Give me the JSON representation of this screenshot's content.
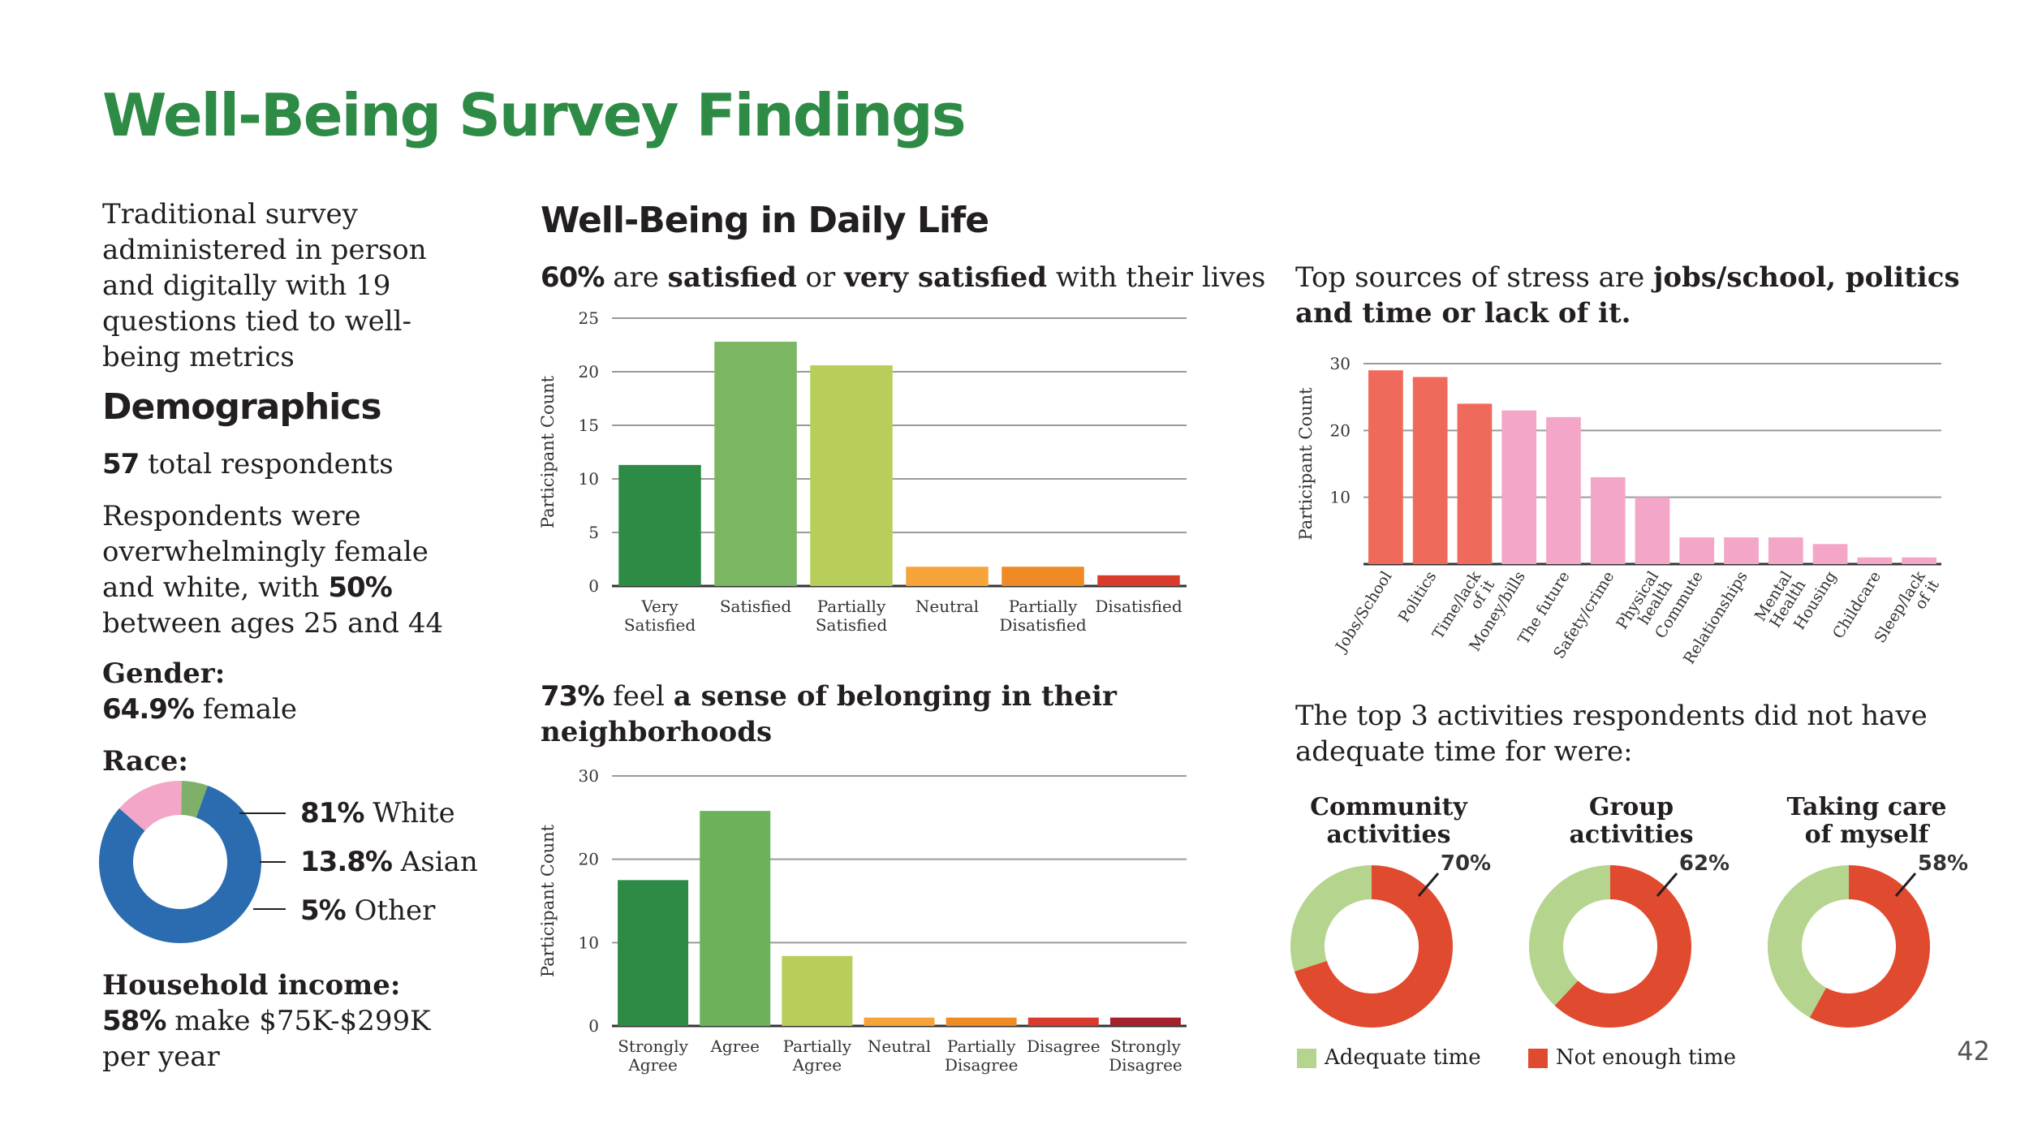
{
  "title": "Well-Being Survey Findings",
  "intro": "Traditional survey administered in person and digitally with 19 questions tied to well-being metrics",
  "demographics": {
    "heading": "Demographics",
    "total_num": "57",
    "total_text": "total respondents",
    "respondents_text": "Respondents were overwhelmingly female and white, with",
    "respondents_pct": "50%",
    "respondents_text2": "between ages 25 and 44",
    "gender_label": "Gender:",
    "gender_pct": "64.9%",
    "gender_text": "female",
    "race_label": "Race:",
    "race": [
      {
        "pct": "81%",
        "label": "White",
        "value": 81,
        "color": "#2b6cb0"
      },
      {
        "pct": "13.8%",
        "label": "Asian",
        "value": 13.8,
        "color": "#f4a6c8"
      },
      {
        "pct": "5%",
        "label": "Other",
        "value": 5.2,
        "color": "#7fb069"
      }
    ],
    "income_label": "Household income:",
    "income_pct": "58%",
    "income_text": "make $75K-$299K per year"
  },
  "daily_life_heading": "Well-Being in Daily Life",
  "satisfaction_title": {
    "pct": "60%",
    "t1": "are",
    "b1": "satisfied",
    "t2": "or",
    "b2": "very satisfied",
    "t3": "with their lives"
  },
  "belonging_title": {
    "pct": "73%",
    "t1": "feel",
    "b1": "a sense of belonging in their neighborhoods"
  },
  "stress_title": {
    "t1": "Top sources of stress are",
    "b1": "jobs/school, politics and time or lack of it."
  },
  "activities_title": "The top 3 activities respondents did not have adequate time for were:",
  "page_number": "42",
  "chart_data": [
    {
      "id": "satisfaction",
      "type": "bar",
      "ylabel": "Participant Count",
      "ylim": [
        0,
        25
      ],
      "yticks": [
        0,
        5,
        10,
        15,
        20,
        25
      ],
      "categories": [
        "Very Satisfied",
        "Satisfied",
        "Partially Satisfied",
        "Neutral",
        "Partially Disatisfied",
        "Disatisfied"
      ],
      "values": [
        11.3,
        22.8,
        20.6,
        1.8,
        1.8,
        1.0
      ],
      "colors": [
        "#2e8b46",
        "#7bb662",
        "#b7cf5a",
        "#f6a33a",
        "#f08a24",
        "#d93a2b"
      ]
    },
    {
      "id": "belonging",
      "type": "bar",
      "ylabel": "Participant Count",
      "ylim": [
        0,
        30
      ],
      "yticks": [
        0,
        10,
        20,
        30
      ],
      "categories": [
        "Strongly Agree",
        "Agree",
        "Partially Agree",
        "Neutral",
        "Partially Disagree",
        "Disagree",
        "Strongly Disagree"
      ],
      "values": [
        17.5,
        25.8,
        8.4,
        1.0,
        1.0,
        1.0,
        1.0
      ],
      "colors": [
        "#2e8b46",
        "#6cb25a",
        "#b7cf5a",
        "#f6a33a",
        "#f08a24",
        "#d93a2b",
        "#a3202d"
      ]
    },
    {
      "id": "stress",
      "type": "bar",
      "ylabel": "Participant Count",
      "ylim": [
        0,
        30
      ],
      "yticks": [
        10,
        20,
        30
      ],
      "categories": [
        "Jobs/School",
        "Politics",
        "Time/lack of it",
        "Money/bills",
        "The future",
        "Safety/crime",
        "Physical health",
        "Commute",
        "Relationships",
        "Mental Health",
        "Housing",
        "Childcare",
        "Sleep/lack of it"
      ],
      "values": [
        29,
        28,
        24,
        23,
        22,
        13,
        10,
        4,
        4,
        4,
        3,
        1,
        1
      ],
      "colors": [
        "#ef6a5a",
        "#ef6a5a",
        "#ef6a5a",
        "#f4a6c8",
        "#f4a6c8",
        "#f4a6c8",
        "#f4a6c8",
        "#f4a6c8",
        "#f4a6c8",
        "#f4a6c8",
        "#f4a6c8",
        "#f4a6c8",
        "#f4a6c8"
      ]
    },
    {
      "id": "activities",
      "type": "pie",
      "series": [
        {
          "name": "Community activities",
          "label": "70%",
          "not_enough": 70
        },
        {
          "name": "Group activities",
          "label": "62%",
          "not_enough": 62
        },
        {
          "name": "Taking care of myself",
          "label": "58%",
          "not_enough": 58
        }
      ],
      "legend": [
        {
          "label": "Adequate time",
          "color": "#b5d48e"
        },
        {
          "label": "Not enough time",
          "color": "#e04a2e"
        }
      ]
    }
  ]
}
